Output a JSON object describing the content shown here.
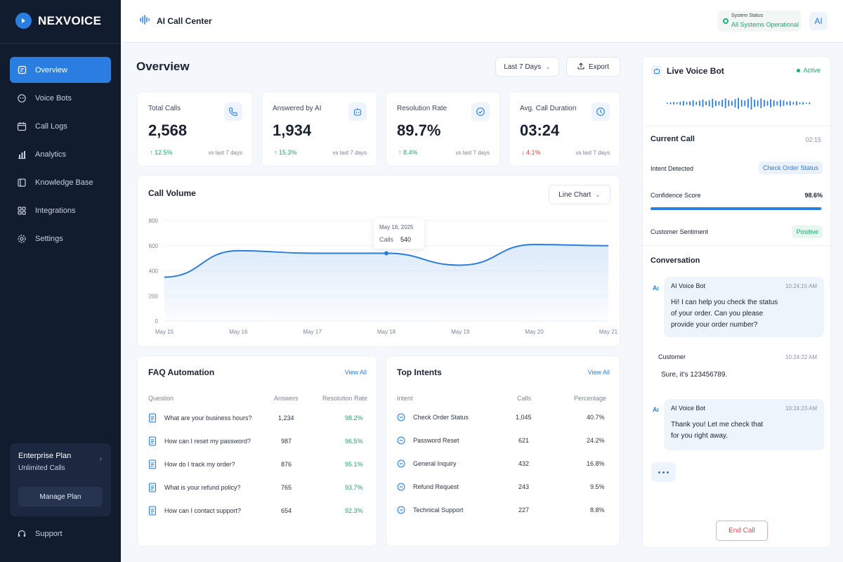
{
  "brand": {
    "name": "NEXVOICE"
  },
  "sidebar": {
    "items": [
      {
        "label": "Overview",
        "icon": "overview-icon",
        "active": true
      },
      {
        "label": "Voice Bots",
        "icon": "bot-icon"
      },
      {
        "label": "Call Logs",
        "icon": "calendar-icon"
      },
      {
        "label": "Analytics",
        "icon": "bar-chart-icon"
      },
      {
        "label": "Knowledge Base",
        "icon": "book-icon"
      },
      {
        "label": "Integrations",
        "icon": "grid-icon"
      },
      {
        "label": "Settings",
        "icon": "gear-icon"
      }
    ],
    "plan": {
      "title": "Enterprise Plan",
      "subtitle": "Unlimited Calls",
      "button": "Manage Plan"
    },
    "support": "Support"
  },
  "topbar": {
    "title": "AI Call Center",
    "status_label": "System Status",
    "status_value": "All Systems Operational",
    "avatar": "AI"
  },
  "main": {
    "title": "Overview",
    "range": "Last 7 Days",
    "export": "Export",
    "kpis": [
      {
        "label": "Total Calls",
        "value": "2,568",
        "change": "12.5%",
        "direction": "up",
        "vs": "vs last 7 days",
        "icon": "phone-icon"
      },
      {
        "label": "Answered by AI",
        "value": "1,934",
        "change": "15.3%",
        "direction": "up",
        "vs": "vs last 7 days",
        "icon": "robot-icon"
      },
      {
        "label": "Resolution Rate",
        "value": "89.7%",
        "change": "8.4%",
        "direction": "up",
        "vs": "vs last 7 days",
        "icon": "check-shield-icon"
      },
      {
        "label": "Avg. Call Duration",
        "value": "03:24",
        "change": "4.1%",
        "direction": "down",
        "vs": "vs last 7 days",
        "icon": "clock-icon"
      }
    ],
    "call_volume": {
      "title": "Call Volume",
      "chart_type_label": "Line Chart",
      "tooltip": {
        "date": "May 18, 2025",
        "label": "Calls",
        "value": "540"
      }
    },
    "faq": {
      "title": "FAQ Automation",
      "view_all": "View All",
      "headers": [
        "Question",
        "Answers",
        "Resolution Rate"
      ],
      "rows": [
        {
          "q": "What are your business hours?",
          "a": "1,234",
          "r": "98.2%"
        },
        {
          "q": "How can I reset my password?",
          "a": "987",
          "r": "96.5%"
        },
        {
          "q": "How do I track my order?",
          "a": "876",
          "r": "95.1%"
        },
        {
          "q": "What is your refund policy?",
          "a": "765",
          "r": "93.7%"
        },
        {
          "q": "How can I contact support?",
          "a": "654",
          "r": "92.3%"
        }
      ]
    },
    "intents": {
      "title": "Top Intents",
      "view_all": "View All",
      "headers": [
        "Intent",
        "Calls",
        "Percentage"
      ],
      "rows": [
        {
          "i": "Check Order Status",
          "c": "1,045",
          "p": "40.7%"
        },
        {
          "i": "Password Reset",
          "c": "621",
          "p": "24.2%"
        },
        {
          "i": "General Inquiry",
          "c": "432",
          "p": "16.8%"
        },
        {
          "i": "Refund Request",
          "c": "243",
          "p": "9.5%"
        },
        {
          "i": "Technical Support",
          "c": "227",
          "p": "8.8%"
        }
      ]
    }
  },
  "chart_data": {
    "type": "line",
    "title": "Call Volume",
    "x": [
      "May 15",
      "May 16",
      "May 17",
      "May 18",
      "May 19",
      "May 20",
      "May 21"
    ],
    "series": [
      {
        "values": [
          350,
          560,
          540,
          540,
          445,
          610,
          600
        ]
      }
    ],
    "ylim": [
      0,
      800
    ],
    "yticks": [
      0,
      200,
      400,
      600,
      800
    ],
    "grid": true
  },
  "live_bot": {
    "title": "Live Voice Bot",
    "status": "Active",
    "current_call_label": "Current Call",
    "current_call_time": "02:15",
    "intent_label": "Intent Detected",
    "intent_value": "Check Order Status",
    "confidence_label": "Confidence Score",
    "confidence_value": "98.6%",
    "confidence_fraction": 0.986,
    "sentiment_label": "Customer Sentiment",
    "sentiment_value": "Positive",
    "conversation_title": "Conversation",
    "messages": [
      {
        "sender": "AI Voice Bot",
        "time": "10:24:15 AM",
        "lines": [
          "Hi! I can help you check the status",
          "of your order. Can you please",
          "provide your order number?"
        ]
      },
      {
        "sender": "Customer",
        "time": "10:24:22 AM",
        "lines": [
          "Sure, it's 123456789."
        ]
      },
      {
        "sender": "AI Voice Bot",
        "time": "10:24:23 AM",
        "lines": [
          "Thank you! Let me check that",
          "for you right away."
        ]
      }
    ],
    "end_call": "End Call"
  }
}
